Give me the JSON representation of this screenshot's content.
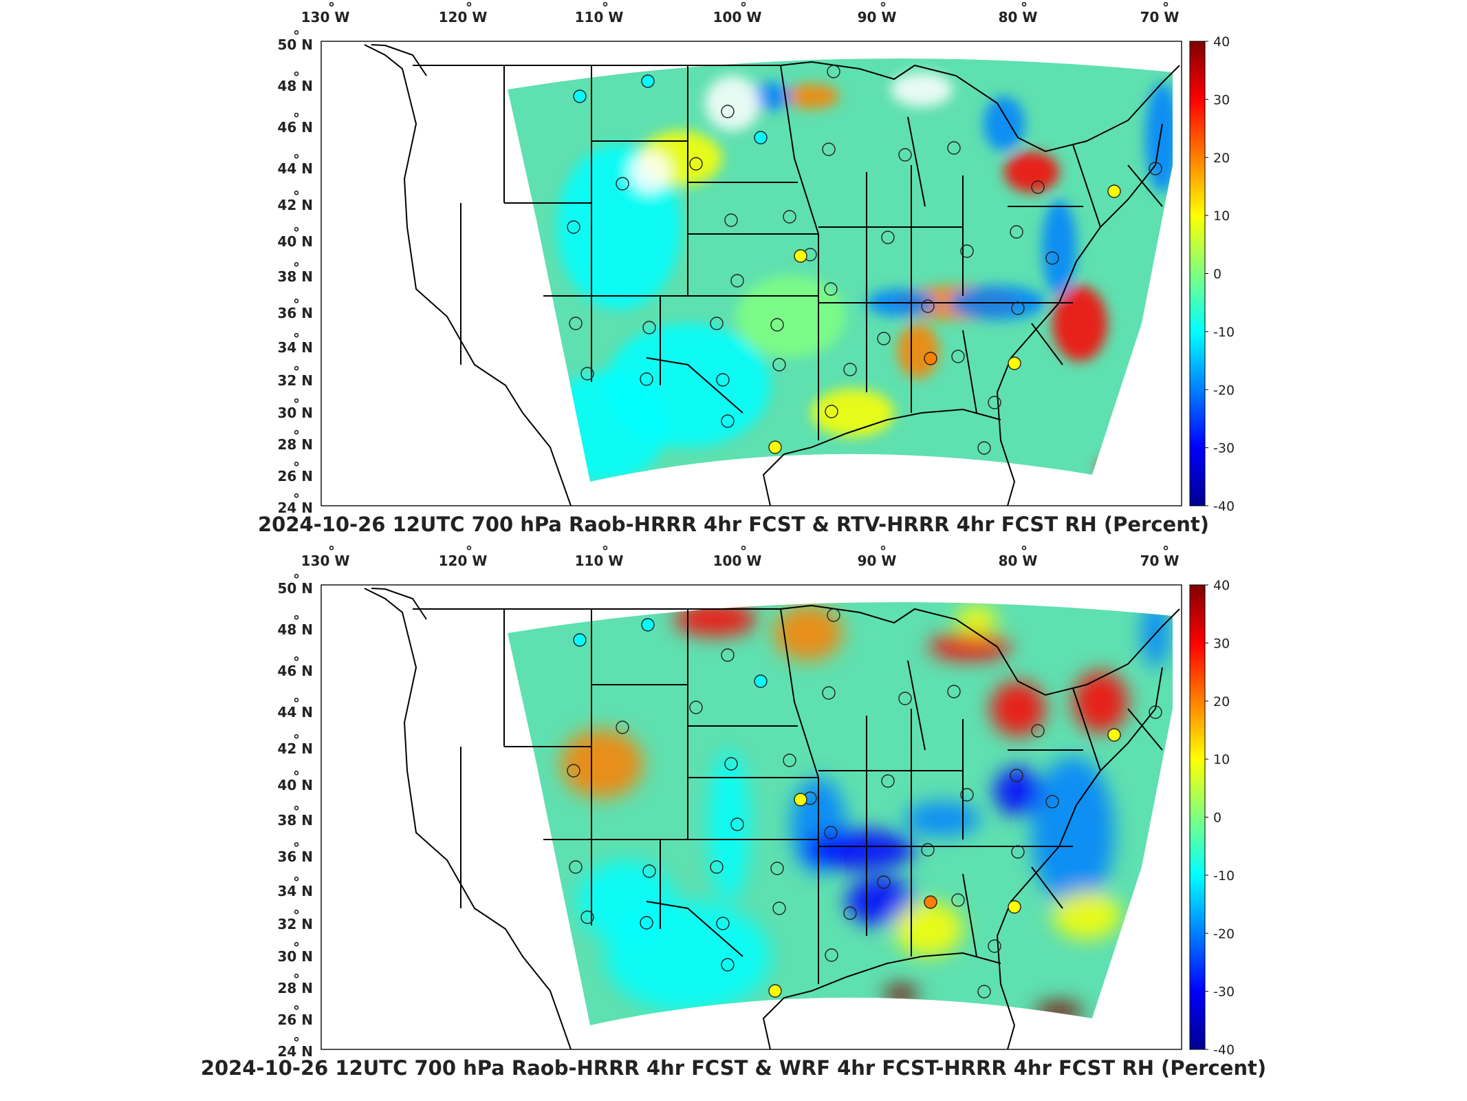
{
  "panels": [
    {
      "id": "top",
      "title": "2024-10-26 12UTC 700 hPa Raob-HRRR 4hr FCST & RTV-HRRR 4hr FCST RH (Percent)"
    },
    {
      "id": "bottom",
      "title": "2024-10-26 12UTC 700 hPa Raob-HRRR 4hr FCST & WRF 4hr FCST-HRRR 4hr FCST RH (Percent)"
    }
  ],
  "map": {
    "lon_ticks": [
      "130",
      "120",
      "110",
      "100",
      "90",
      "80",
      "70"
    ],
    "lon_hemisphere": "W",
    "lat_ticks": [
      "50",
      "48",
      "46",
      "44",
      "42",
      "40",
      "38",
      "36",
      "34",
      "32",
      "30",
      "28",
      "26",
      "24"
    ],
    "lat_hemisphere": "N",
    "degree_symbol": "°"
  },
  "colorbar": {
    "ticks": [
      "40",
      "30",
      "20",
      "10",
      "0",
      "-10",
      "-20",
      "-30",
      "-40"
    ],
    "range": [
      -40,
      40
    ],
    "colormap": "jet",
    "colors": [
      "#00008f",
      "#0000ff",
      "#0080ff",
      "#00ffff",
      "#80ff80",
      "#ffff00",
      "#ff8000",
      "#ff0000",
      "#800000"
    ]
  },
  "colors": {
    "field_base": "#5fe0b0",
    "border": "#000000",
    "station_outline": "#222222"
  }
}
